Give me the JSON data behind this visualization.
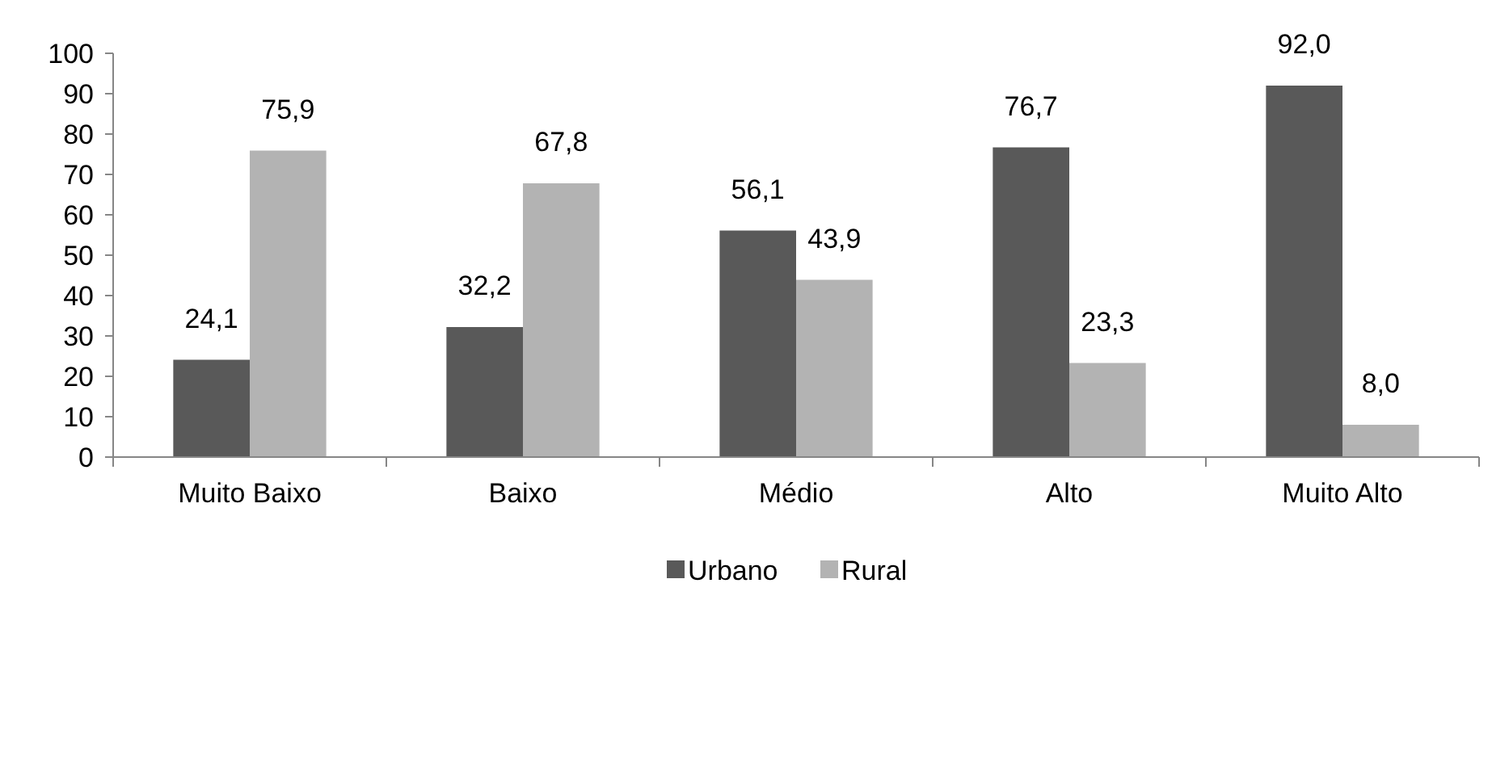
{
  "chart_data": {
    "type": "bar",
    "categories": [
      "Muito Baixo",
      "Baixo",
      "Médio",
      "Alto",
      "Muito Alto"
    ],
    "series": [
      {
        "name": "Urbano",
        "color": "#595959",
        "values": [
          24.1,
          32.2,
          56.1,
          76.7,
          92.0
        ],
        "value_labels": [
          "24,1",
          "32,2",
          "56,1",
          "76,7",
          "92,0"
        ]
      },
      {
        "name": "Rural",
        "color": "#b3b3b3",
        "values": [
          75.9,
          67.8,
          43.9,
          23.3,
          8.0
        ],
        "value_labels": [
          "75,9",
          "67,8",
          "43,9",
          "23,3",
          "8,0"
        ]
      }
    ],
    "ylim": [
      0,
      100
    ],
    "yticks": [
      0,
      10,
      20,
      30,
      40,
      50,
      60,
      70,
      80,
      90,
      100
    ],
    "grid": false,
    "legend": "bottom"
  }
}
